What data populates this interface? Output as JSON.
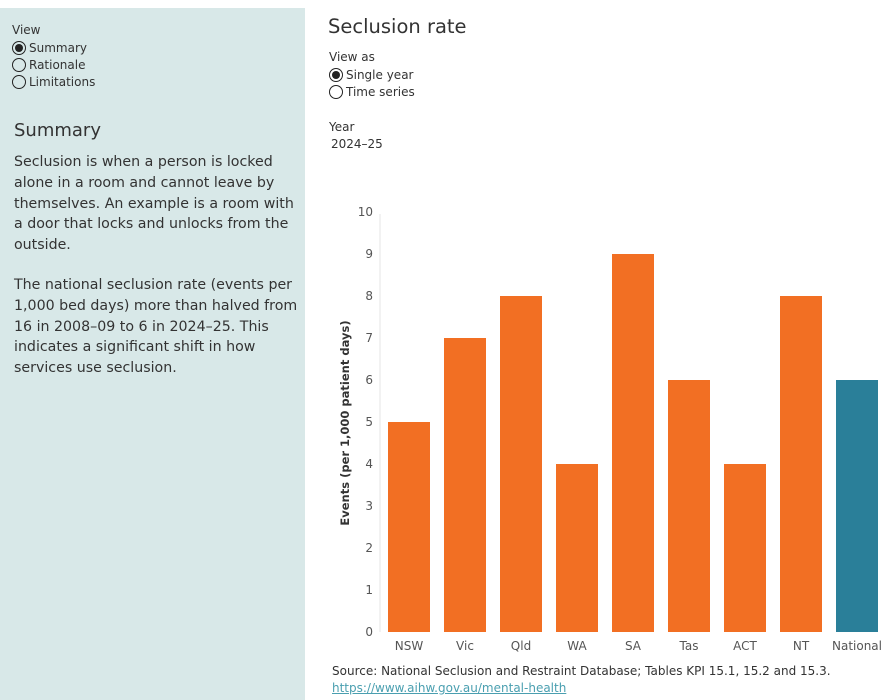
{
  "sidebar": {
    "view": {
      "title": "View",
      "options": [
        "Summary",
        "Rationale",
        "Limitations"
      ],
      "selected": 0
    },
    "heading": "Summary",
    "paragraphs": [
      "Seclusion is when a person is locked alone in a room and cannot leave by themselves. An example is a room with a door that locks and unlocks from the outside.",
      "The national seclusion rate (events per 1,000 bed days) more than halved from 16 in 2008–09 to 6 in 2024–25. This indicates a significant shift in how services use seclusion."
    ]
  },
  "main": {
    "title": "Seclusion rate",
    "view_as": {
      "title": "View as",
      "options": [
        "Single year",
        "Time series"
      ],
      "selected": 0
    },
    "year": {
      "title": "Year",
      "value": "2024–25"
    },
    "source": "Source: National Seclusion and Restraint Database; Tables KPI 15.1, 15.2 and 15.3.",
    "link": "https://www.aihw.gov.au/mental-health"
  },
  "colors": {
    "state_bar": "#f26f23",
    "national_bar": "#2a7f99",
    "sidebar_bg": "#d8e8e8"
  },
  "chart_data": {
    "type": "bar",
    "categories": [
      "NSW",
      "Vic",
      "Qld",
      "WA",
      "SA",
      "Tas",
      "ACT",
      "NT",
      "National"
    ],
    "values": [
      5,
      7,
      8,
      4,
      9,
      6,
      4,
      8,
      6
    ],
    "ylabel": "Events (per 1,000 patient days)",
    "xlabel": "",
    "ylim": [
      0,
      10
    ],
    "yticks": [
      0,
      1,
      2,
      3,
      4,
      5,
      6,
      7,
      8,
      9,
      10
    ],
    "grid": false,
    "highlight": "National"
  }
}
